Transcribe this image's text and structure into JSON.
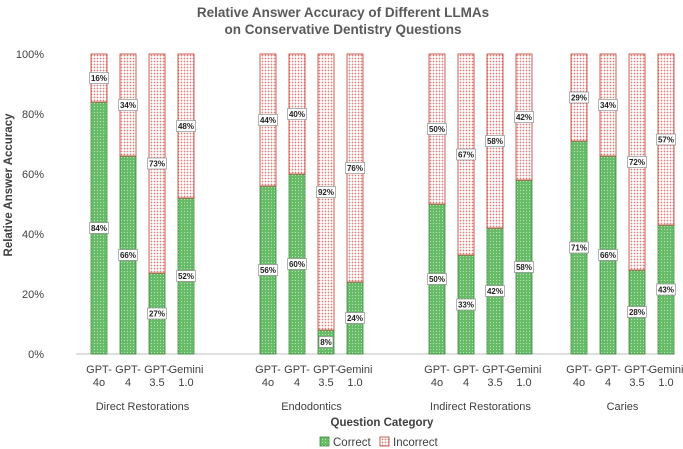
{
  "chart_data": {
    "type": "bar",
    "stacked": true,
    "title": [
      "Relative Answer Accuracy of Different LLMAs",
      "on Conservative Dentistry Questions"
    ],
    "xlabel": "Question Category",
    "ylabel": "Relative Answer Accuracy",
    "ylim": [
      0,
      100
    ],
    "yticks": [
      "0%",
      "20%",
      "40%",
      "60%",
      "80%",
      "100%"
    ],
    "yticks_values": [
      0,
      20,
      40,
      60,
      80,
      100
    ],
    "groups": [
      {
        "name": "Direct Restorations",
        "models": [
          {
            "label": [
              "GPT-",
              "4o"
            ],
            "correct": 84,
            "incorrect": 16
          },
          {
            "label": [
              "GPT-",
              "4"
            ],
            "correct": 66,
            "incorrect": 34
          },
          {
            "label": [
              "GPT-",
              "3.5"
            ],
            "correct": 27,
            "incorrect": 73
          },
          {
            "label": [
              "Gemini",
              "1.0"
            ],
            "correct": 52,
            "incorrect": 48
          }
        ]
      },
      {
        "name": "Endodontics",
        "models": [
          {
            "label": [
              "GPT-",
              "4o"
            ],
            "correct": 56,
            "incorrect": 44
          },
          {
            "label": [
              "GPT-",
              "4"
            ],
            "correct": 60,
            "incorrect": 40
          },
          {
            "label": [
              "GPT-",
              "3.5"
            ],
            "correct": 8,
            "incorrect": 92
          },
          {
            "label": [
              "Gemini",
              "1.0"
            ],
            "correct": 24,
            "incorrect": 76
          }
        ]
      },
      {
        "name": "Indirect Restorations",
        "models": [
          {
            "label": [
              "GPT-",
              "4o"
            ],
            "correct": 50,
            "incorrect": 50
          },
          {
            "label": [
              "GPT-",
              "4"
            ],
            "correct": 33,
            "incorrect": 67
          },
          {
            "label": [
              "GPT-",
              "3.5"
            ],
            "correct": 42,
            "incorrect": 58
          },
          {
            "label": [
              "Gemini",
              "1.0"
            ],
            "correct": 58,
            "incorrect": 42
          }
        ]
      },
      {
        "name": "Caries",
        "models": [
          {
            "label": [
              "GPT-",
              "4o"
            ],
            "correct": 71,
            "incorrect": 29
          },
          {
            "label": [
              "GPT-",
              "4"
            ],
            "correct": 66,
            "incorrect": 34
          },
          {
            "label": [
              "GPT-",
              "3.5"
            ],
            "correct": 28,
            "incorrect": 72
          },
          {
            "label": [
              "Gemini",
              "1.0"
            ],
            "correct": 43,
            "incorrect": 57
          }
        ]
      }
    ],
    "legend": [
      {
        "name": "Correct",
        "color": "#5cb85c"
      },
      {
        "name": "Incorrect",
        "color": "#f08080"
      }
    ],
    "legend_position": "bottom",
    "colors": {
      "correct_fill": "#5fb65f",
      "correct_edge": "#3d8b3d",
      "incorrect_fill": "#f2a0a0",
      "incorrect_edge": "#c0392b"
    },
    "data_label_suffix": "%"
  }
}
